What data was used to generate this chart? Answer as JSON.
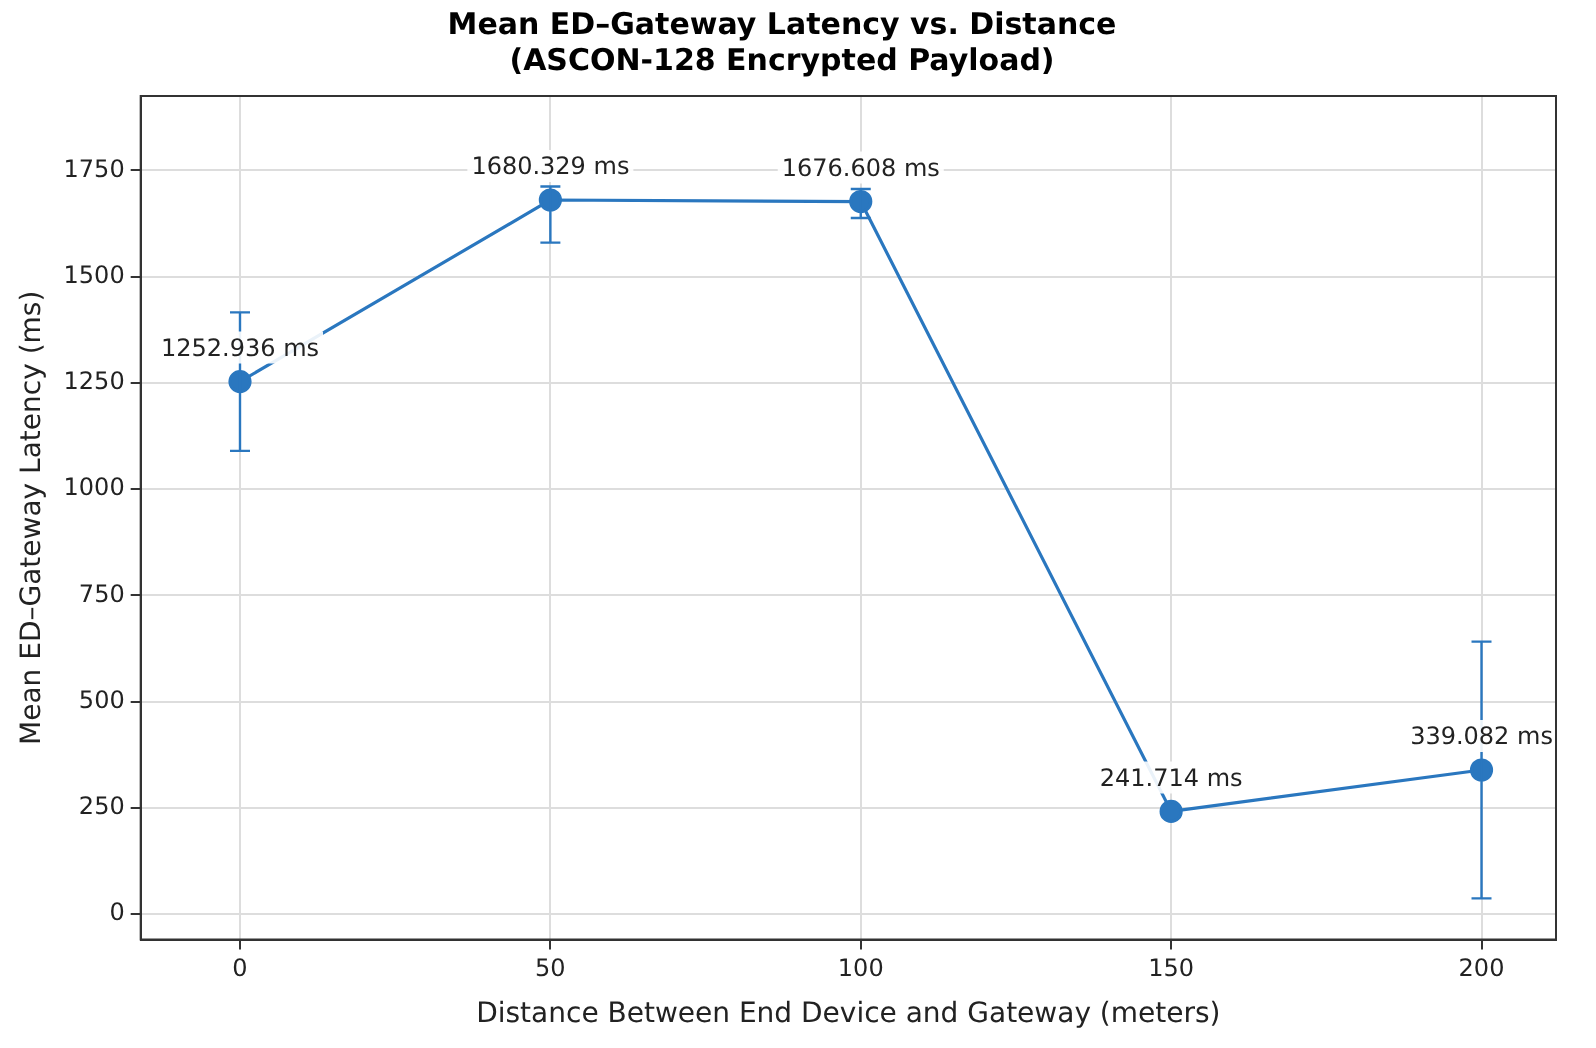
{
  "chart_data": {
    "type": "line",
    "title": "Mean ED–Gateway Latency vs. Distance\n(ASCON-128 Encrypted Payload)",
    "xlabel": "Distance Between End Device and Gateway (meters)",
    "ylabel": "Mean ED–Gateway Latency (ms)",
    "x": [
      0,
      50,
      100,
      150,
      200
    ],
    "series": [
      {
        "color": "#2a77bf",
        "values": [
          1252.936,
          1680.329,
          1676.608,
          241.714,
          339.082
        ],
        "errors": [
          163,
          [
            1580,
            1712
          ],
          [
            1638,
            1706
          ],
          null,
          302
        ],
        "value_labels": [
          "1252.936 ms",
          "1680.329 ms",
          "1676.608 ms",
          "241.714 ms",
          "339.082 ms"
        ]
      }
    ],
    "xlim": [
      -16,
      212
    ],
    "xticks": [
      0,
      50,
      100,
      150,
      200
    ],
    "ylim": [
      -60,
      1925
    ],
    "yticks": [
      0,
      250,
      500,
      750,
      1000,
      1250,
      1500,
      1750
    ],
    "grid": true,
    "marker": "circle",
    "line_style": "solid",
    "legend": false
  }
}
